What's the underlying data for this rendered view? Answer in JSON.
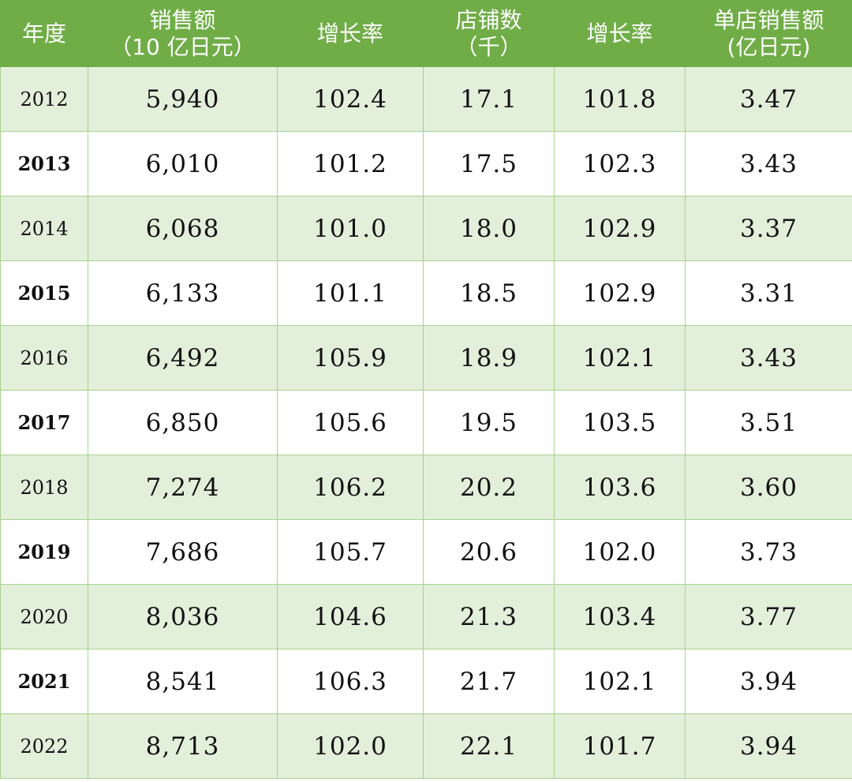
{
  "chart_data": {
    "type": "table",
    "columns": [
      {
        "key": "year",
        "label": "年度",
        "label2": ""
      },
      {
        "key": "sales",
        "label": "销售额",
        "label2": "（10 亿日元）"
      },
      {
        "key": "sales_growth",
        "label": "增长率",
        "label2": ""
      },
      {
        "key": "stores",
        "label": "店铺数",
        "label2": "（千）"
      },
      {
        "key": "store_growth",
        "label": "增长率",
        "label2": ""
      },
      {
        "key": "per_store_sales",
        "label": "单店销售额",
        "label2": "(亿日元)"
      }
    ],
    "rows": [
      {
        "year": "2012",
        "sales": "5,940",
        "sales_growth": "102.4",
        "stores": "17.1",
        "store_growth": "101.8",
        "per_store_sales": "3.47"
      },
      {
        "year": "2013",
        "sales": "6,010",
        "sales_growth": "101.2",
        "stores": "17.5",
        "store_growth": "102.3",
        "per_store_sales": "3.43"
      },
      {
        "year": "2014",
        "sales": "6,068",
        "sales_growth": "101.0",
        "stores": "18.0",
        "store_growth": "102.9",
        "per_store_sales": "3.37"
      },
      {
        "year": "2015",
        "sales": "6,133",
        "sales_growth": "101.1",
        "stores": "18.5",
        "store_growth": "102.9",
        "per_store_sales": "3.31"
      },
      {
        "year": "2016",
        "sales": "6,492",
        "sales_growth": "105.9",
        "stores": "18.9",
        "store_growth": "102.1",
        "per_store_sales": "3.43"
      },
      {
        "year": "2017",
        "sales": "6,850",
        "sales_growth": "105.6",
        "stores": "19.5",
        "store_growth": "103.5",
        "per_store_sales": "3.51"
      },
      {
        "year": "2018",
        "sales": "7,274",
        "sales_growth": "106.2",
        "stores": "20.2",
        "store_growth": "103.6",
        "per_store_sales": "3.60"
      },
      {
        "year": "2019",
        "sales": "7,686",
        "sales_growth": "105.7",
        "stores": "20.6",
        "store_growth": "102.0",
        "per_store_sales": "3.73"
      },
      {
        "year": "2020",
        "sales": "8,036",
        "sales_growth": "104.6",
        "stores": "21.3",
        "store_growth": "103.4",
        "per_store_sales": "3.77"
      },
      {
        "year": "2021",
        "sales": "8,541",
        "sales_growth": "106.3",
        "stores": "21.7",
        "store_growth": "102.1",
        "per_store_sales": "3.94"
      },
      {
        "year": "2022",
        "sales": "8,713",
        "sales_growth": "102.0",
        "stores": "22.1",
        "store_growth": "101.7",
        "per_store_sales": "3.94"
      }
    ]
  },
  "colors": {
    "header_bg": "#70ad47",
    "header_text": "#ffffff",
    "band_bg": "#e2efda",
    "plain_bg": "#ffffff",
    "border": "#a9d18e"
  }
}
